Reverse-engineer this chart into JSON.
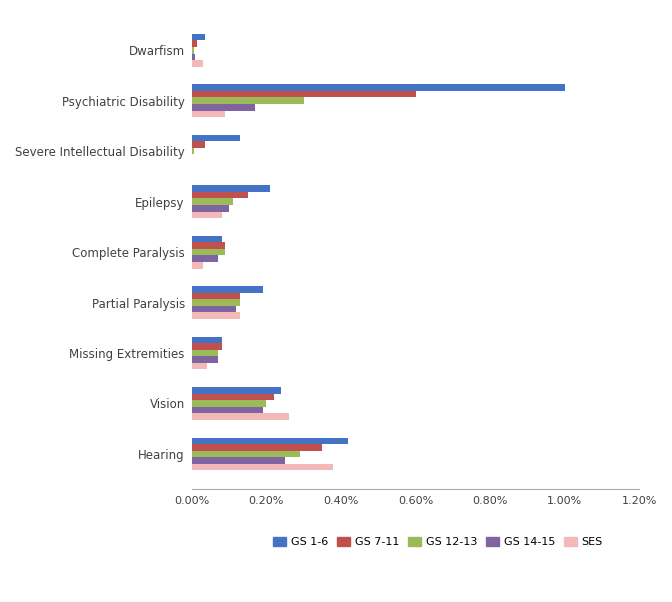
{
  "categories": [
    "Hearing",
    "Vision",
    "Missing Extremities",
    "Partial Paralysis",
    "Complete Paralysis",
    "Epilepsy",
    "Severe Intellectual Disability",
    "Psychiatric Disability",
    "Dwarfism"
  ],
  "series": {
    "GS 1-6": [
      0.0042,
      0.0024,
      0.0008,
      0.0019,
      0.0008,
      0.0021,
      0.0013,
      0.01,
      0.00035
    ],
    "GS 7-11": [
      0.0035,
      0.0022,
      0.0008,
      0.0013,
      0.0009,
      0.0015,
      0.00035,
      0.006,
      0.00015
    ],
    "GS 12-13": [
      0.0029,
      0.002,
      0.0007,
      0.0013,
      0.0009,
      0.0011,
      5e-05,
      0.003,
      5e-05
    ],
    "GS 14-15": [
      0.0025,
      0.0019,
      0.0007,
      0.0012,
      0.0007,
      0.001,
      0.0,
      0.0017,
      0.0001
    ],
    "SES": [
      0.0038,
      0.0026,
      0.0004,
      0.0013,
      0.0003,
      0.0008,
      0.0,
      0.0009,
      0.0003
    ]
  },
  "colors": {
    "GS 1-6": "#4472c4",
    "GS 7-11": "#c0504d",
    "GS 12-13": "#9bbb59",
    "GS 14-15": "#8064a2",
    "SES": "#f2b9b8"
  },
  "xlim": [
    0,
    0.012
  ],
  "xtick_vals": [
    0.0,
    0.002,
    0.004,
    0.006,
    0.008,
    0.01,
    0.012
  ],
  "xtick_labels": [
    "0.00%",
    "0.20%",
    "0.40%",
    "0.60%",
    "0.80%",
    "1.00%",
    "1.20%"
  ],
  "legend_order": [
    "GS 1-6",
    "GS 7-11",
    "GS 12-13",
    "GS 14-15",
    "SES"
  ]
}
